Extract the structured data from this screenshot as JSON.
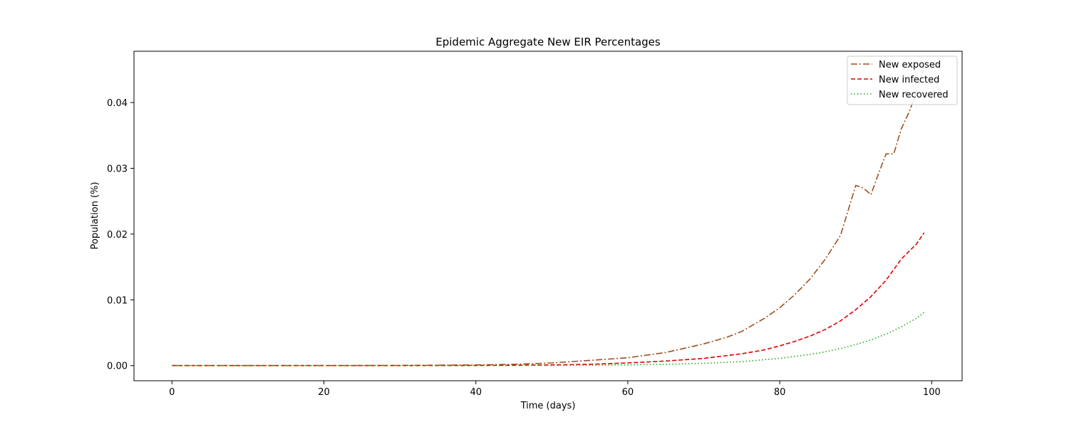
{
  "chart_data": {
    "type": "line",
    "title": "Epidemic Aggregate New EIR Percentages",
    "xlabel": "Time (days)",
    "ylabel": "Population (%)",
    "xlim": [
      -5,
      104
    ],
    "ylim": [
      -0.0023,
      0.0478
    ],
    "xticks": [
      0,
      20,
      40,
      60,
      80,
      100
    ],
    "yticks": [
      0.0,
      0.01,
      0.02,
      0.03,
      0.04
    ],
    "xtick_labels": [
      "0",
      "20",
      "40",
      "60",
      "80",
      "100"
    ],
    "ytick_labels": [
      "0.00",
      "0.01",
      "0.02",
      "0.03",
      "0.04"
    ],
    "grid": false,
    "legend_position": "top-right",
    "series": [
      {
        "name": "New exposed",
        "color": "#a0501e",
        "style": "dashdot",
        "points": [
          [
            0,
            0.0
          ],
          [
            20,
            1e-05
          ],
          [
            30,
            3e-05
          ],
          [
            40,
            0.0001
          ],
          [
            45,
            0.0002
          ],
          [
            50,
            0.0004
          ],
          [
            55,
            0.0008
          ],
          [
            60,
            0.0012
          ],
          [
            65,
            0.002
          ],
          [
            70,
            0.0033
          ],
          [
            73,
            0.0043
          ],
          [
            75,
            0.0052
          ],
          [
            78,
            0.0072
          ],
          [
            80,
            0.0088
          ],
          [
            82,
            0.0108
          ],
          [
            84,
            0.0132
          ],
          [
            86,
            0.0162
          ],
          [
            88,
            0.0198
          ],
          [
            90,
            0.0274
          ],
          [
            91,
            0.027
          ],
          [
            92,
            0.026
          ],
          [
            93,
            0.0292
          ],
          [
            94,
            0.0322
          ],
          [
            95,
            0.0322
          ],
          [
            96,
            0.036
          ],
          [
            97,
            0.0385
          ],
          [
            98,
            0.0415
          ],
          [
            99,
            0.0455
          ]
        ]
      },
      {
        "name": "New infected",
        "color": "#e00000",
        "style": "dashed",
        "points": [
          [
            0,
            0.0
          ],
          [
            20,
            0.0
          ],
          [
            30,
            1e-05
          ],
          [
            40,
            3e-05
          ],
          [
            45,
            6e-05
          ],
          [
            50,
            0.0001
          ],
          [
            55,
            0.0002
          ],
          [
            60,
            0.0004
          ],
          [
            65,
            0.0007
          ],
          [
            70,
            0.0011
          ],
          [
            75,
            0.0018
          ],
          [
            78,
            0.0024
          ],
          [
            80,
            0.003
          ],
          [
            82,
            0.0037
          ],
          [
            84,
            0.0045
          ],
          [
            86,
            0.0055
          ],
          [
            88,
            0.0068
          ],
          [
            90,
            0.0085
          ],
          [
            92,
            0.0105
          ],
          [
            94,
            0.013
          ],
          [
            96,
            0.0162
          ],
          [
            98,
            0.0185
          ],
          [
            99,
            0.0202
          ]
        ]
      },
      {
        "name": "New recovered",
        "color": "#22aa22",
        "style": "dotted",
        "points": [
          [
            0,
            0.0
          ],
          [
            30,
            0.0
          ],
          [
            40,
            1e-05
          ],
          [
            50,
            4e-05
          ],
          [
            60,
            0.0001
          ],
          [
            65,
            0.0002
          ],
          [
            70,
            0.00035
          ],
          [
            75,
            0.0006
          ],
          [
            78,
            0.0009
          ],
          [
            80,
            0.0011
          ],
          [
            82,
            0.0014
          ],
          [
            84,
            0.0017
          ],
          [
            86,
            0.0021
          ],
          [
            88,
            0.0026
          ],
          [
            90,
            0.0032
          ],
          [
            92,
            0.0039
          ],
          [
            94,
            0.0048
          ],
          [
            96,
            0.0059
          ],
          [
            98,
            0.0072
          ],
          [
            99,
            0.0081
          ]
        ]
      }
    ]
  }
}
